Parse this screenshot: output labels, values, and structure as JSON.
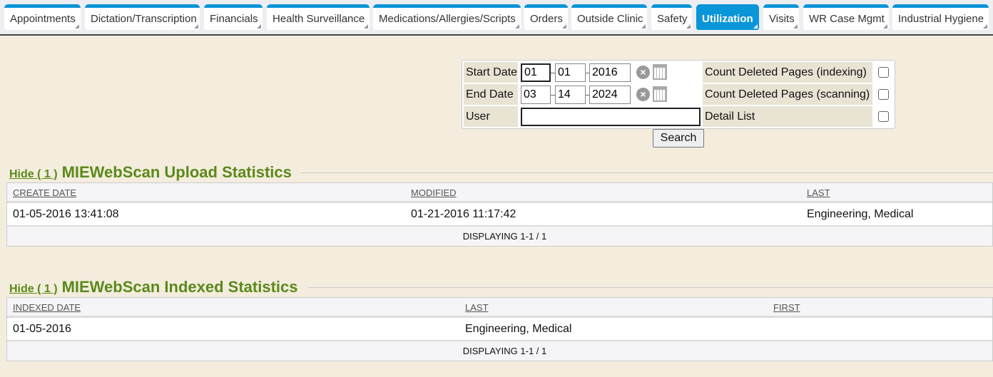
{
  "tabs": [
    {
      "label": "Appointments",
      "active": false
    },
    {
      "label": "Dictation/Transcription",
      "active": false
    },
    {
      "label": "Financials",
      "active": false
    },
    {
      "label": "Health Surveillance",
      "active": false
    },
    {
      "label": "Medications/Allergies/Scripts",
      "active": false
    },
    {
      "label": "Orders",
      "active": false
    },
    {
      "label": "Outside Clinic",
      "active": false
    },
    {
      "label": "Safety",
      "active": false
    },
    {
      "label": "Utilization",
      "active": true
    },
    {
      "label": "Visits",
      "active": false
    },
    {
      "label": "WR Case Mgmt",
      "active": false
    },
    {
      "label": "Industrial Hygiene",
      "active": false
    }
  ],
  "form": {
    "start_label": "Start Date",
    "start": {
      "month": "01",
      "day": "01",
      "year": "2016"
    },
    "end_label": "End Date",
    "end": {
      "month": "03",
      "day": "14",
      "year": "2024"
    },
    "user_label": "User",
    "user_value": "",
    "cb1_label": "Count Deleted Pages (indexing)",
    "cb2_label": "Count Deleted Pages (scanning)",
    "cb3_label": "Detail List",
    "cb1": false,
    "cb2": false,
    "cb3": false,
    "search_label": "Search"
  },
  "upload": {
    "hide_label": "Hide ( 1 )",
    "title": "MIEWebScan Upload Statistics",
    "columns": [
      "CREATE DATE",
      "MODIFIED",
      "LAST"
    ],
    "rows": [
      [
        "01-05-2016 13:41:08",
        "01-21-2016 11:17:42",
        "Engineering, Medical"
      ]
    ],
    "footer": "DISPLAYING 1-1 / 1"
  },
  "indexed": {
    "hide_label": "Hide ( 1 )",
    "title": "MIEWebScan Indexed Statistics",
    "columns": [
      "INDEXED DATE",
      "LAST",
      "FIRST"
    ],
    "rows": [
      [
        "01-05-2016",
        "Engineering, Medical",
        ""
      ]
    ],
    "footer": "DISPLAYING 1-1 / 1"
  },
  "colors": {
    "tab_accent": "#0a95d8",
    "title_green": "#5a8a1a",
    "background": "#f4ecdd"
  }
}
